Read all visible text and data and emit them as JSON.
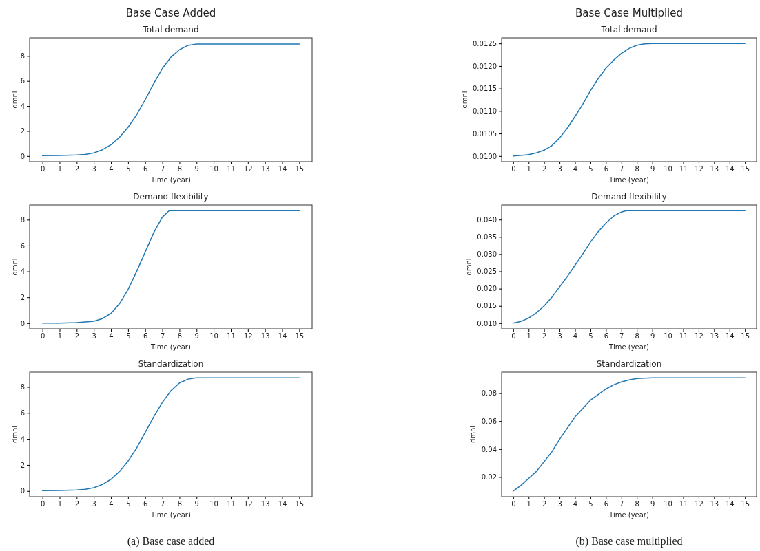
{
  "chart_data": [
    {
      "type": "line",
      "title": "Base Case Added",
      "subtitle": "Total demand",
      "xlabel": "Time (year)",
      "ylabel": "dmnl",
      "xlim": [
        -0.75,
        15.75
      ],
      "xticks": [
        0,
        1,
        2,
        3,
        4,
        5,
        6,
        7,
        8,
        9,
        10,
        11,
        12,
        13,
        14,
        15
      ],
      "ylim": [
        -0.45,
        9.45
      ],
      "yticks": [
        0,
        2,
        4,
        6,
        8
      ],
      "grid": false,
      "series": [
        {
          "color": "#1f77b4",
          "x": [
            0,
            1,
            2,
            2.5,
            3,
            3.5,
            4,
            4.5,
            5,
            5.5,
            6,
            6.5,
            7,
            7.5,
            8,
            8.5,
            9,
            15
          ],
          "values": [
            0.03,
            0.04,
            0.08,
            0.13,
            0.25,
            0.5,
            0.9,
            1.5,
            2.3,
            3.3,
            4.5,
            5.8,
            7.0,
            7.9,
            8.5,
            8.85,
            8.95,
            8.95
          ]
        }
      ]
    },
    {
      "type": "line",
      "title": "Base Case Multiplied",
      "subtitle": "Total demand",
      "xlabel": "Time (year)",
      "ylabel": "dmnl",
      "xlim": [
        -0.75,
        15.75
      ],
      "xticks": [
        0,
        1,
        2,
        3,
        4,
        5,
        6,
        7,
        8,
        9,
        10,
        11,
        12,
        13,
        14,
        15
      ],
      "ylim": [
        0.009875,
        0.012625
      ],
      "yticks": [
        {
          "value": 0.01,
          "label": "0.0100"
        },
        {
          "value": 0.0105,
          "label": "0.0105"
        },
        {
          "value": 0.011,
          "label": "0.0110"
        },
        {
          "value": 0.0115,
          "label": "0.0115"
        },
        {
          "value": 0.012,
          "label": "0.0120"
        },
        {
          "value": 0.0125,
          "label": "0.0125"
        }
      ],
      "grid": false,
      "series": [
        {
          "color": "#1f77b4",
          "x": [
            0,
            1,
            1.5,
            2,
            2.5,
            3,
            3.5,
            4,
            4.5,
            5,
            5.5,
            6,
            6.5,
            7,
            7.5,
            8,
            8.5,
            9,
            15
          ],
          "values": [
            0.01,
            0.01003,
            0.01007,
            0.01013,
            0.01023,
            0.0104,
            0.01062,
            0.01088,
            0.01115,
            0.01145,
            0.01172,
            0.01195,
            0.01213,
            0.01228,
            0.01239,
            0.01246,
            0.01249,
            0.0125,
            0.0125
          ]
        }
      ]
    },
    {
      "type": "line",
      "subtitle": "Demand flexibility",
      "xlabel": "Time (year)",
      "ylabel": "dmnl",
      "xlim": [
        -0.75,
        15.75
      ],
      "xticks": [
        0,
        1,
        2,
        3,
        4,
        5,
        6,
        7,
        8,
        9,
        10,
        11,
        12,
        13,
        14,
        15
      ],
      "ylim": [
        -0.435,
        9.135
      ],
      "yticks": [
        0,
        2,
        4,
        6,
        8
      ],
      "grid": false,
      "series": [
        {
          "color": "#1f77b4",
          "x": [
            0,
            1,
            2,
            3,
            3.5,
            4,
            4.5,
            5,
            5.5,
            6,
            6.5,
            7,
            7.4,
            15
          ],
          "values": [
            0,
            0.01,
            0.04,
            0.15,
            0.35,
            0.75,
            1.5,
            2.6,
            4.0,
            5.5,
            7.0,
            8.2,
            8.7,
            8.7
          ]
        }
      ]
    },
    {
      "type": "line",
      "subtitle": "Demand flexibility",
      "xlabel": "Time (year)",
      "ylabel": "dmnl",
      "xlim": [
        -0.75,
        15.75
      ],
      "xticks": [
        0,
        1,
        2,
        3,
        4,
        5,
        6,
        7,
        8,
        9,
        10,
        11,
        12,
        13,
        14,
        15
      ],
      "ylim": [
        0.00837,
        0.04423
      ],
      "yticks": [
        {
          "value": 0.01,
          "label": "0.010"
        },
        {
          "value": 0.015,
          "label": "0.015"
        },
        {
          "value": 0.02,
          "label": "0.020"
        },
        {
          "value": 0.025,
          "label": "0.025"
        },
        {
          "value": 0.03,
          "label": "0.030"
        },
        {
          "value": 0.035,
          "label": "0.035"
        },
        {
          "value": 0.04,
          "label": "0.040"
        }
      ],
      "grid": false,
      "series": [
        {
          "color": "#1f77b4",
          "x": [
            0,
            0.5,
            1,
            1.5,
            2,
            2.5,
            3,
            3.5,
            4,
            4.5,
            5,
            5.5,
            6,
            6.5,
            7,
            7.3,
            15
          ],
          "values": [
            0.01,
            0.0105,
            0.0115,
            0.013,
            0.015,
            0.0175,
            0.0205,
            0.0235,
            0.0268,
            0.03,
            0.0335,
            0.0365,
            0.039,
            0.041,
            0.0422,
            0.0426,
            0.0426
          ]
        }
      ]
    },
    {
      "type": "line",
      "subtitle": "Standardization",
      "xlabel": "Time (year)",
      "ylabel": "dmnl",
      "xlim": [
        -0.75,
        15.75
      ],
      "xticks": [
        0,
        1,
        2,
        3,
        4,
        5,
        6,
        7,
        8,
        9,
        10,
        11,
        12,
        13,
        14,
        15
      ],
      "ylim": [
        -0.435,
        9.135
      ],
      "yticks": [
        0,
        2,
        4,
        6,
        8
      ],
      "grid": false,
      "annotations": [
        "(a) Base case added"
      ],
      "series": [
        {
          "color": "#1f77b4",
          "x": [
            0,
            1,
            2,
            2.5,
            3,
            3.5,
            4,
            4.5,
            5,
            5.5,
            6,
            6.5,
            7,
            7.5,
            8,
            8.5,
            9,
            15
          ],
          "values": [
            0.03,
            0.04,
            0.08,
            0.13,
            0.25,
            0.5,
            0.9,
            1.5,
            2.3,
            3.3,
            4.5,
            5.7,
            6.8,
            7.7,
            8.3,
            8.6,
            8.7,
            8.7
          ]
        }
      ]
    },
    {
      "type": "line",
      "subtitle": "Standardization",
      "xlabel": "Time (year)",
      "ylabel": "dmnl",
      "xlim": [
        -0.75,
        15.75
      ],
      "xticks": [
        0,
        1,
        2,
        3,
        4,
        5,
        6,
        7,
        8,
        9,
        10,
        11,
        12,
        13,
        14,
        15
      ],
      "ylim": [
        0.00595,
        0.09505
      ],
      "yticks": [
        {
          "value": 0.02,
          "label": "0.02"
        },
        {
          "value": 0.04,
          "label": "0.04"
        },
        {
          "value": 0.06,
          "label": "0.06"
        },
        {
          "value": 0.08,
          "label": "0.08"
        }
      ],
      "grid": false,
      "annotations": [
        "(b) Base case multiplied"
      ],
      "series": [
        {
          "color": "#1f77b4",
          "x": [
            0,
            0.5,
            1,
            1.5,
            2,
            2.5,
            3,
            3.5,
            4,
            4.5,
            5,
            5.5,
            6,
            6.5,
            7,
            7.5,
            8,
            9,
            15
          ],
          "values": [
            0.01,
            0.014,
            0.019,
            0.024,
            0.031,
            0.038,
            0.047,
            0.055,
            0.063,
            0.069,
            0.075,
            0.079,
            0.083,
            0.086,
            0.088,
            0.0895,
            0.0905,
            0.091,
            0.091
          ]
        }
      ]
    }
  ]
}
